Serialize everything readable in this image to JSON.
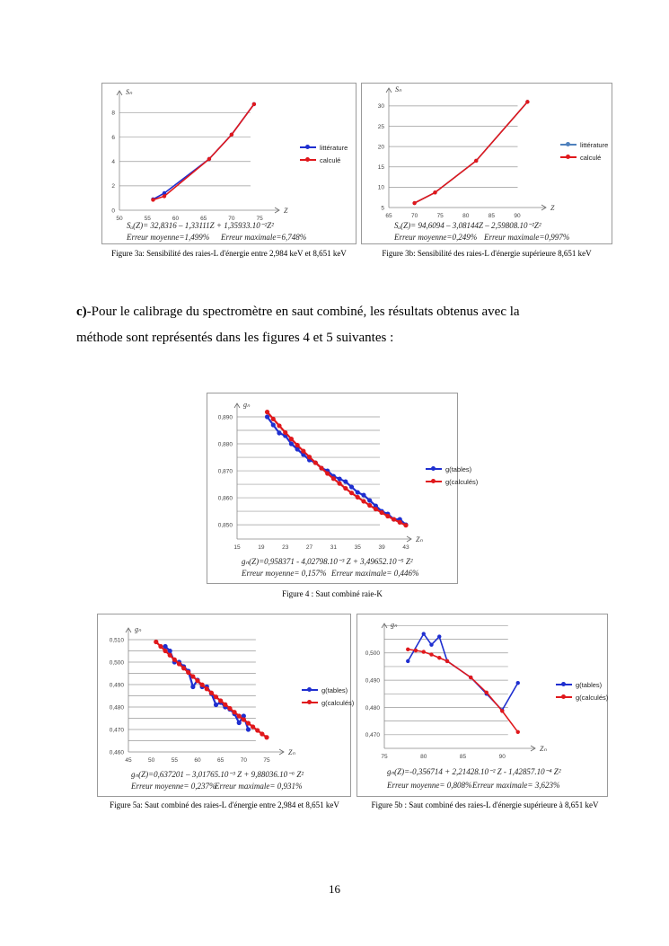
{
  "paragraph": {
    "prefix": "c)",
    "line1": "-Pour le calibrage du spectromètre  en saut combiné, les résultats obtenus avec la",
    "line2": "méthode sont représentés dans les figures 4 et 5 suivantes :"
  },
  "page_number": "16",
  "colors": {
    "blue": "#1f2fd0",
    "red": "#e0181c",
    "lightblue": "#4f81bd",
    "grid": "#9a9a9a"
  },
  "chart_data": [
    {
      "id": "fig3a",
      "type": "line",
      "ylabel": "Sₙ",
      "xlabel": "Z",
      "xlim": [
        50,
        78.5
      ],
      "ylim": [
        0,
        9.8
      ],
      "xticks": [
        50,
        55,
        60,
        65,
        70,
        75
      ],
      "xtick_labels": [
        "50",
        "55",
        "60",
        "65",
        "70",
        "75"
      ],
      "yticks": [
        0,
        2,
        4,
        6,
        8
      ],
      "ytick_labels": [
        "0",
        "2",
        "4",
        "6",
        "8"
      ],
      "gridlines": [
        2,
        4,
        6,
        8
      ],
      "series": [
        {
          "name": "littérature",
          "color": "#1f2fd0",
          "x": [
            56,
            58,
            66,
            70,
            74
          ],
          "y": [
            0.9,
            1.4,
            4.2,
            6.2,
            8.7
          ]
        },
        {
          "name": "calculé",
          "color": "#e0181c",
          "x": [
            56,
            58,
            66,
            70,
            74
          ],
          "y": [
            0.85,
            1.15,
            4.2,
            6.2,
            8.7
          ]
        }
      ],
      "equation": "Sₐ(Z)= 32,8316 – 1,33111Z + 1,35933.10⁻²Z²",
      "mean_error": "Erreur moyenne=1,499%",
      "max_error": "Erreur maximale=6,748%",
      "caption": "Figure 3a: Sensibilité des raies-L d'énergie entre 2,984 keV et 8,651 keV"
    },
    {
      "id": "fig3b",
      "type": "line",
      "ylabel": "Sₙ",
      "xlabel": "Z",
      "xlim": [
        65,
        95.6
      ],
      "ylim": [
        5,
        34.4
      ],
      "xticks": [
        65,
        70,
        75,
        80,
        85,
        90
      ],
      "xtick_labels": [
        "65",
        "70",
        "75",
        "80",
        "85",
        "90"
      ],
      "yticks": [
        5,
        10,
        15,
        20,
        25,
        30
      ],
      "ytick_labels": [
        "5",
        "10",
        "15",
        "20",
        "25",
        "30"
      ],
      "gridlines": [
        10,
        15,
        20,
        25,
        30
      ],
      "series": [
        {
          "name": "littérature",
          "color": "#4f81bd",
          "x": [
            70,
            74,
            82,
            92
          ],
          "y": [
            6.1,
            8.7,
            16.5,
            31
          ]
        },
        {
          "name": "calculé",
          "color": "#e0181c",
          "x": [
            70,
            74,
            82,
            92
          ],
          "y": [
            6.1,
            8.7,
            16.5,
            31
          ]
        }
      ],
      "equation": "Sₐ(Z)= 94,6094 – 3,08144Z – 2,59808.10⁻²Z²",
      "mean_error": "Erreur moyenne=0,249%",
      "max_error": "Erreur maximale=0,997%",
      "caption": "Figure 3b: Sensibilité des raies-L d'énergie supérieure 8,651 keV"
    },
    {
      "id": "fig4",
      "type": "line",
      "ylabel": "gₙ",
      "xlabel": "Zₙ",
      "xlim": [
        15,
        43.9
      ],
      "ylim": [
        0.8447,
        0.895
      ],
      "xticks": [
        15,
        19,
        23,
        27,
        31,
        35,
        39,
        43
      ],
      "xtick_labels": [
        "15",
        "19",
        "23",
        "27",
        "31",
        "35",
        "39",
        "43"
      ],
      "yticks": [
        0.85,
        0.86,
        0.87,
        0.88,
        0.89
      ],
      "ytick_labels": [
        "0,850",
        "0,860",
        "0,870",
        "0,880",
        "0,890"
      ],
      "gridlines": [
        0.85,
        0.855,
        0.86,
        0.865,
        0.87,
        0.875,
        0.88,
        0.885,
        0.89
      ],
      "series": [
        {
          "name": "g(tables)",
          "color": "#1f2fd0",
          "x": [
            20,
            21,
            22,
            23,
            24,
            25,
            26,
            27,
            28,
            29,
            30,
            31,
            32,
            33,
            34,
            35,
            36,
            37,
            38,
            39,
            40,
            41,
            42,
            43
          ],
          "y": [
            0.89,
            0.887,
            0.884,
            0.883,
            0.88,
            0.878,
            0.876,
            0.874,
            0.873,
            0.871,
            0.87,
            0.868,
            0.867,
            0.866,
            0.864,
            0.862,
            0.861,
            0.859,
            0.857,
            0.855,
            0.854,
            0.852,
            0.852,
            0.85
          ]
        },
        {
          "name": "g(calculés)",
          "color": "#e0181c",
          "x": [
            20,
            21,
            22,
            23,
            24,
            25,
            26,
            27,
            28,
            29,
            30,
            31,
            32,
            33,
            34,
            35,
            36,
            37,
            38,
            39,
            40,
            41,
            42,
            43
          ],
          "y": [
            0.8918,
            0.8892,
            0.8867,
            0.8842,
            0.8818,
            0.8795,
            0.8773,
            0.8751,
            0.873,
            0.871,
            0.869,
            0.8671,
            0.8653,
            0.8635,
            0.8618,
            0.8602,
            0.8587,
            0.8572,
            0.8558,
            0.8545,
            0.8532,
            0.852,
            0.8509,
            0.8498
          ]
        }
      ],
      "equation": "gₙ(Z)=0,958371 - 4,02798.10⁻³ Z + 3,49652.10⁻⁵ Z²",
      "mean_error": "Erreur moyenne= 0,157%",
      "max_error": "Erreur maximale= 0,446%",
      "caption": "Figure 4 : Saut combiné raie-K"
    },
    {
      "id": "fig5a",
      "type": "line",
      "ylabel": "gₙ",
      "xlabel": "Zₙ",
      "xlim": [
        45,
        78.7
      ],
      "ylim": [
        0.46,
        0.5152
      ],
      "xticks": [
        45,
        50,
        55,
        60,
        65,
        70,
        75
      ],
      "xtick_labels": [
        "45",
        "50",
        "55",
        "60",
        "65",
        "70",
        "75"
      ],
      "yticks": [
        0.46,
        0.47,
        0.48,
        0.49,
        0.5,
        0.51
      ],
      "ytick_labels": [
        "0,460",
        "0,470",
        "0,480",
        "0,490",
        "0,500",
        "0,510"
      ],
      "gridlines": [
        0.465,
        0.47,
        0.475,
        0.48,
        0.485,
        0.49,
        0.495,
        0.5,
        0.505,
        0.51
      ],
      "series": [
        {
          "name": "g(tables)",
          "color": "#1f2fd0",
          "x": [
            53,
            54,
            55,
            56,
            57,
            58,
            59,
            60,
            61,
            62,
            63,
            64,
            65,
            66,
            67,
            68,
            69,
            70,
            71
          ],
          "y": [
            0.507,
            0.505,
            0.5,
            0.5,
            0.498,
            0.496,
            0.489,
            0.492,
            0.489,
            0.489,
            0.486,
            0.481,
            0.482,
            0.48,
            0.479,
            0.477,
            0.473,
            0.476,
            0.47
          ]
        },
        {
          "name": "g(calculés)",
          "color": "#e0181c",
          "x": [
            51,
            52,
            53,
            54,
            55,
            56,
            57,
            58,
            59,
            60,
            61,
            62,
            63,
            64,
            65,
            66,
            67,
            68,
            69,
            70,
            71,
            72,
            73,
            74,
            75
          ],
          "y": [
            0.509,
            0.507,
            0.505,
            0.5031,
            0.5011,
            0.4992,
            0.4973,
            0.4954,
            0.4936,
            0.4917,
            0.4899,
            0.4881,
            0.4863,
            0.4845,
            0.4828,
            0.4811,
            0.4794,
            0.4777,
            0.476,
            0.4744,
            0.4728,
            0.4712,
            0.4696,
            0.468,
            0.4665
          ]
        }
      ],
      "equation": "gₙ(Z)=0,637201 – 3,01765.10⁻³ Z + 9,88036.10⁻⁶ Z²",
      "mean_error": "Erreur moyenne= 0,237%",
      "max_error": "Erreur maximale= 0,931%",
      "caption": "Figure 5a: Saut combiné des raies-L d'énergie entre 2,984 et 8,651 keV"
    },
    {
      "id": "fig5b",
      "type": "line",
      "ylabel": "gₙ",
      "xlabel": "Zₙ",
      "xlim": [
        75,
        94.2
      ],
      "ylim": [
        0.465,
        0.5108
      ],
      "xticks": [
        75,
        80,
        85,
        90
      ],
      "xtick_labels": [
        "75",
        "80",
        "85",
        "90"
      ],
      "yticks": [
        0.47,
        0.48,
        0.49,
        0.5
      ],
      "ytick_labels": [
        "0,470",
        "0,480",
        "0,490",
        "0,500"
      ],
      "gridlines": [
        0.47,
        0.475,
        0.48,
        0.485,
        0.49,
        0.495,
        0.5,
        0.505,
        0.51
      ],
      "series": [
        {
          "name": "g(tables)",
          "color": "#1f2fd0",
          "x": [
            78,
            80,
            81,
            82,
            83,
            86,
            88,
            90,
            92
          ],
          "y": [
            0.497,
            0.507,
            0.503,
            0.506,
            0.497,
            0.491,
            0.485,
            0.479,
            0.489
          ]
        },
        {
          "name": "g(calculés)",
          "color": "#e0181c",
          "x": [
            78,
            79,
            80,
            81,
            82,
            83,
            86,
            88,
            90,
            92
          ],
          "y": [
            0.5013,
            0.5009,
            0.5004,
            0.4994,
            0.4982,
            0.497,
            0.491,
            0.4855,
            0.4787,
            0.471
          ]
        }
      ],
      "equation": "gₙ(Z)=-0,356714 + 2,21428.10⁻² Z - 1,42857.10⁻⁴ Z²",
      "mean_error": "Erreur moyenne= 0,808%",
      "max_error": "Erreur maximale= 3,623%",
      "caption": "Figure 5b : Saut combiné des raies-L d'énergie supérieure à 8,651 keV"
    }
  ]
}
